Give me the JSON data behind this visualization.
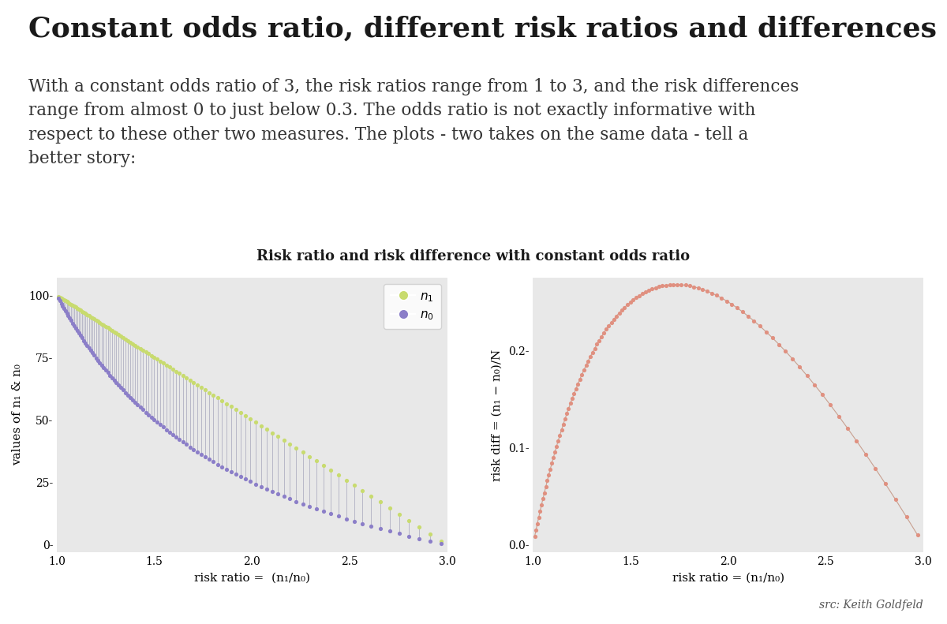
{
  "title": "Constant odds ratio, different risk ratios and differences",
  "subtitle": "With a constant odds ratio of 3, the risk ratios range from 1 to 3, and the risk differences\nrange from almost 0 to just below 0.3. The odds ratio is not exactly informative with\nrespect to these other two measures. The plots - two takes on the same data - tell a\nbetter story:",
  "plot_title": "Risk ratio and risk difference with constant odds ratio",
  "odds_ratio": 3,
  "p0_range": [
    0.005,
    0.995
  ],
  "n_points": 500,
  "bg_color": "#e8e8e8",
  "fig_bg": "#ffffff",
  "left_dot_color_n1": "#c8db6e",
  "left_dot_color_n0": "#8b7ec8",
  "left_line_color": "#b8b8c8",
  "right_dot_color": "#e09080",
  "right_line_color": "#c8a090",
  "ylabel_left": "values of n₁ & n₀",
  "xlabel_left": "risk ratio =  (n₁/n₀)",
  "ylabel_right": "risk diff = (n₁ − n₀)/N",
  "xlabel_right": "risk ratio = (n₁/n₀)",
  "src_text": "src: Keith Goldfeld",
  "title_fontsize": 26,
  "subtitle_fontsize": 15.5,
  "plot_title_fontsize": 13,
  "axis_label_fontsize": 11,
  "tick_fontsize": 10
}
